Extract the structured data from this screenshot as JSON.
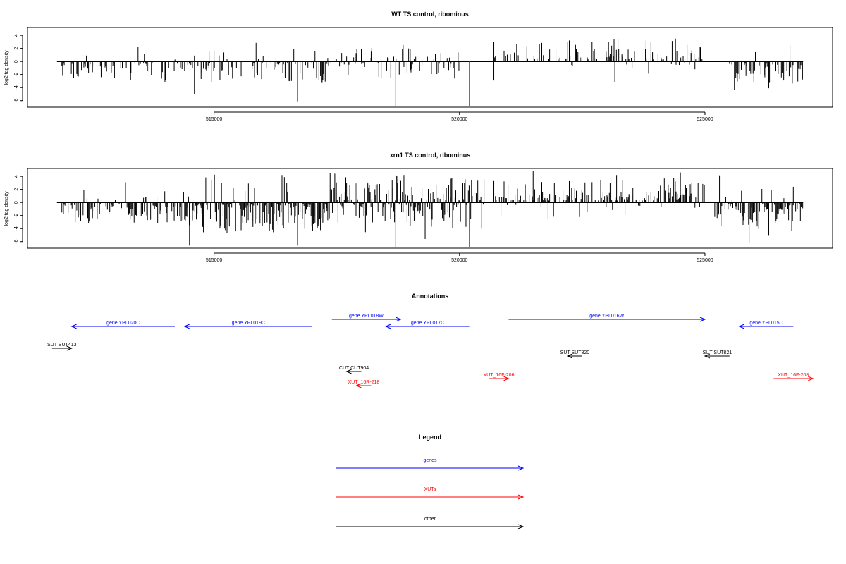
{
  "chart_data": [
    {
      "type": "bar",
      "title": "WT TS control, ribominus",
      "ylabel": "log2 tag density",
      "xlim": [
        511200,
        527600
      ],
      "ylim": [
        -7,
        5.2
      ],
      "xticks": [
        515000,
        520000,
        525000
      ],
      "yticks": [
        4,
        2,
        0,
        -2,
        -4,
        -6
      ],
      "baseline_x": [
        511800,
        527000
      ],
      "markers": [
        {
          "x": 518700,
          "y": -6.8,
          "color": "#ff0000"
        },
        {
          "x": 520200,
          "y": -6.8,
          "color": "#ff0000"
        }
      ],
      "series": [
        {
          "segment": [
            511900,
            514400
          ],
          "sign": -1,
          "density": 0.28,
          "amp": 1.6,
          "max": 3.0,
          "seed": 11,
          "extra": [
            [
              512400,
              0.9,
              1
            ],
            [
              513300,
              -2.9,
              1
            ],
            [
              514000,
              -3.2,
              1
            ]
          ]
        },
        {
          "segment": [
            514400,
            517300
          ],
          "sign": -1,
          "density": 0.35,
          "amp": 2.0,
          "max": 3.6,
          "seed": 23,
          "extra": [
            [
              514600,
              -5.0,
              1
            ],
            [
              514600,
              0.9,
              1
            ],
            [
              514900,
              1.5,
              1
            ],
            [
              515000,
              1.7,
              1
            ],
            [
              516000,
              0.8,
              1
            ],
            [
              516700,
              -6.1,
              1
            ],
            [
              517200,
              -3.3,
              1
            ]
          ]
        },
        {
          "segment": [
            517300,
            520000
          ],
          "sign": 0,
          "density": 0.32,
          "amp": 1.4,
          "max": 2.6,
          "seed": 37,
          "extra": [
            [
              517600,
              1.3,
              1
            ],
            [
              518000,
              1.9,
              1
            ],
            [
              518200,
              1.5,
              1
            ],
            [
              518600,
              -2.5,
              1
            ],
            [
              519000,
              -1.3,
              1
            ],
            [
              519900,
              -2.6,
              1
            ]
          ]
        },
        {
          "segment": [
            520700,
            525000
          ],
          "sign": 1,
          "density": 0.33,
          "amp": 2.0,
          "max": 3.6,
          "seed": 41,
          "extra": [
            [
              520700,
              3.0,
              1
            ],
            [
              522700,
              3.0,
              1
            ],
            [
              523800,
              3.2,
              1
            ],
            [
              524400,
              3.5,
              1
            ],
            [
              524900,
              2.2,
              1
            ]
          ]
        },
        {
          "segment": [
            525500,
            527000
          ],
          "sign": -1,
          "density": 0.45,
          "amp": 2.0,
          "max": 4.4,
          "seed": 53,
          "extra": [
            [
              525600,
              -4.4,
              1
            ],
            [
              526300,
              -4.1,
              1
            ]
          ]
        }
      ]
    },
    {
      "type": "bar",
      "title": "xrn1 TS control, ribominus",
      "ylabel": "log2 tag density",
      "xlim": [
        511200,
        527600
      ],
      "ylim": [
        -7,
        5.2
      ],
      "xticks": [
        515000,
        520000,
        525000
      ],
      "yticks": [
        4,
        2,
        0,
        -2,
        -4,
        -6
      ],
      "baseline_x": [
        511800,
        527000
      ],
      "markers": [
        {
          "x": 518700,
          "y": -6.8,
          "color": "#ff0000"
        },
        {
          "x": 520200,
          "y": -6.8,
          "color": "#ff0000"
        }
      ],
      "series": [
        {
          "segment": [
            511900,
            514400
          ],
          "sign": -1,
          "density": 0.55,
          "amp": 2.0,
          "max": 3.8,
          "seed": 61,
          "extra": []
        },
        {
          "segment": [
            514400,
            517300
          ],
          "sign": -1,
          "density": 0.75,
          "amp": 2.8,
          "max": 6.6,
          "seed": 67,
          "extra": [
            [
              514500,
              -6.6,
              1
            ],
            [
              515000,
              2.2,
              1
            ],
            [
              515700,
              2.9,
              1
            ],
            [
              516700,
              -6.6,
              1
            ]
          ]
        },
        {
          "segment": [
            517300,
            520500
          ],
          "sign": 0,
          "density": 0.85,
          "amp": 2.8,
          "max": 5.6,
          "seed": 71,
          "extra": [
            [
              518300,
              2.6,
              1
            ],
            [
              519300,
              -5.6,
              1
            ]
          ]
        },
        {
          "segment": [
            520700,
            525000
          ],
          "sign": 1,
          "density": 0.55,
          "amp": 2.2,
          "max": 4.6,
          "seed": 79,
          "extra": [
            [
              521500,
              4.8,
              1
            ],
            [
              524500,
              4.6,
              1
            ],
            [
              523200,
              4.2,
              1
            ],
            [
              522600,
              -1.4,
              1
            ]
          ]
        },
        {
          "segment": [
            525200,
            527000
          ],
          "sign": -1,
          "density": 0.7,
          "amp": 2.6,
          "max": 6.2,
          "seed": 83,
          "extra": [
            [
              525900,
              -6.2,
              1
            ],
            [
              526800,
              2.4,
              1
            ],
            [
              526300,
              -5.1,
              1
            ]
          ]
        }
      ]
    }
  ],
  "annotations": {
    "title": "Annotations",
    "items": [
      {
        "label": "gene YPL020C",
        "color": "#0000ff",
        "from": 514200,
        "to": 512100,
        "row": 2
      },
      {
        "label": "gene YPL019C",
        "color": "#0000ff",
        "from": 517000,
        "to": 514400,
        "row": 2
      },
      {
        "label": "gene YPL018W",
        "color": "#0000ff",
        "from": 517400,
        "to": 518800,
        "row": 1
      },
      {
        "label": "gene YPL017C",
        "color": "#0000ff",
        "from": 520200,
        "to": 518500,
        "row": 2
      },
      {
        "label": "gene YPL016W",
        "color": "#0000ff",
        "from": 521000,
        "to": 525000,
        "row": 1
      },
      {
        "label": "gene YPL015C",
        "color": "#0000ff",
        "from": 526800,
        "to": 525700,
        "row": 2
      },
      {
        "label": "SUT SUT413",
        "color": "#000000",
        "from": 511700,
        "to": 512100,
        "row": 3
      },
      {
        "label": "SUT SUT820",
        "color": "#000000",
        "from": 522500,
        "to": 522200,
        "row": 4
      },
      {
        "label": "SUT SUT821",
        "color": "#000000",
        "from": 525500,
        "to": 525000,
        "row": 4
      },
      {
        "label": "CUT CUT904",
        "color": "#000000",
        "from": 518000,
        "to": 517700,
        "row": 5
      },
      {
        "label": "XUT_16R-218",
        "color": "#ff0000",
        "from": 518200,
        "to": 517900,
        "row": 6
      },
      {
        "label": "XUT_16F-206",
        "color": "#ff0000",
        "from": 520600,
        "to": 521000,
        "row": 5.5
      },
      {
        "label": "XUT_16F-208",
        "color": "#ff0000",
        "from": 526400,
        "to": 527200,
        "row": 5.5
      }
    ]
  },
  "legend": {
    "title": "Legend",
    "items": [
      {
        "label": "genes",
        "color": "#0000ff"
      },
      {
        "label": "XUTs",
        "color": "#ff0000"
      },
      {
        "label": "other",
        "color": "#000000"
      }
    ]
  }
}
